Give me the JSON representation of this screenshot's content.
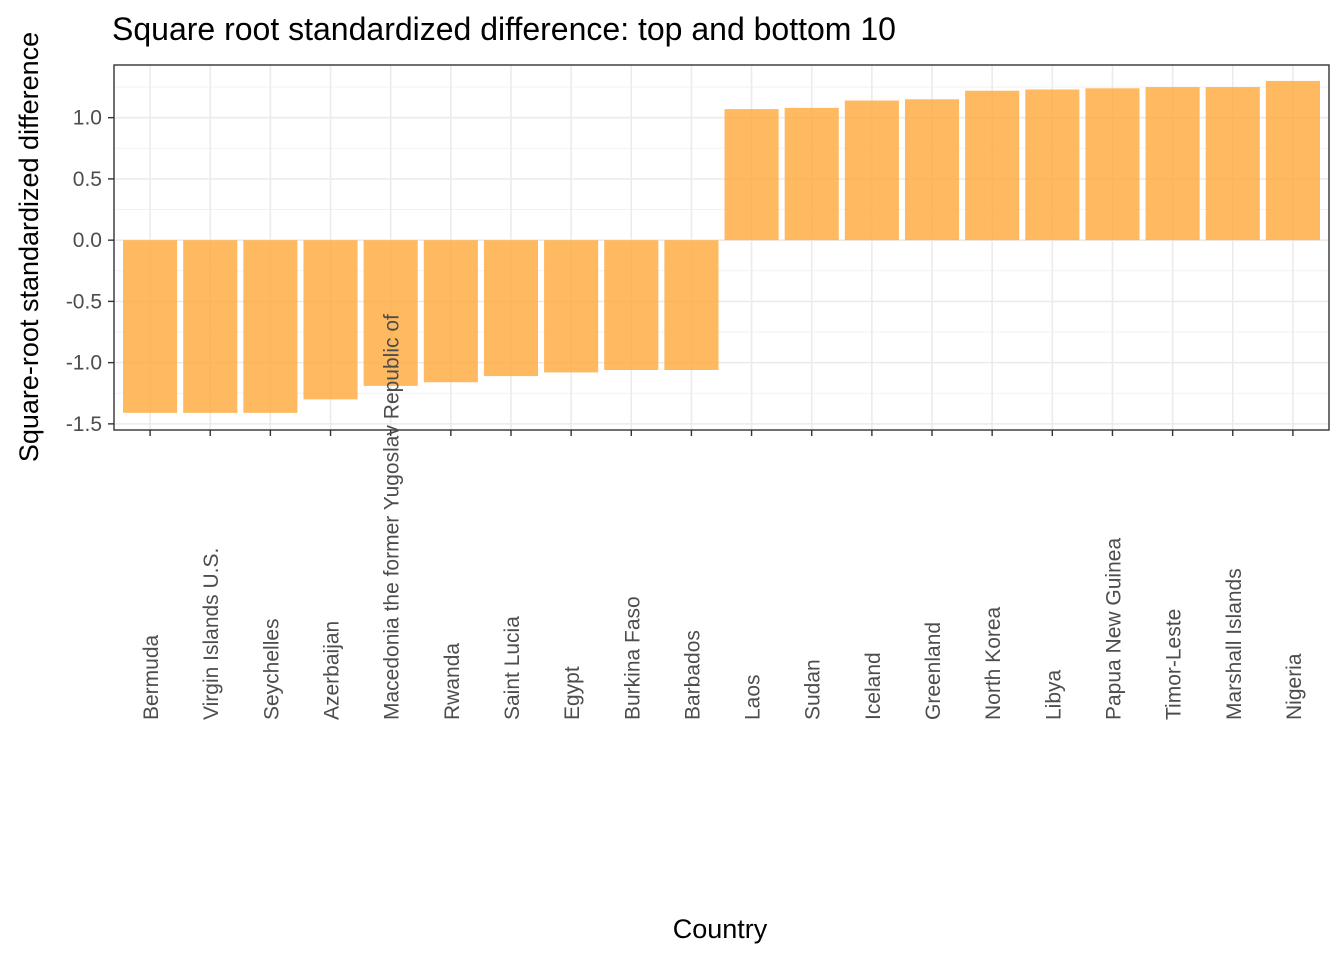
{
  "chart_data": {
    "type": "bar",
    "title": "Square root standardized difference: top and bottom 10",
    "xlabel": "Country",
    "ylabel": "Square-root standardized difference",
    "categories": [
      "Bermuda",
      "Virgin Islands U.S.",
      "Seychelles",
      "Azerbaijan",
      "Macedonia the former Yugoslav Republic of",
      "Rwanda",
      "Saint Lucia",
      "Egypt",
      "Burkina Faso",
      "Barbados",
      "Laos",
      "Sudan",
      "Iceland",
      "Greenland",
      "North Korea",
      "Libya",
      "Papua New Guinea",
      "Timor-Leste",
      "Marshall Islands",
      "Nigeria"
    ],
    "values": [
      -1.41,
      -1.41,
      -1.41,
      -1.3,
      -1.19,
      -1.16,
      -1.11,
      -1.08,
      -1.06,
      -1.06,
      1.07,
      1.08,
      1.14,
      1.15,
      1.22,
      1.23,
      1.24,
      1.25,
      1.25,
      1.3
    ],
    "ylim": [
      -1.55,
      1.43
    ],
    "yticks": [
      -1.5,
      -1.0,
      -0.5,
      0.0,
      0.5,
      1.0
    ],
    "ytick_labels": [
      "-1.5",
      "-1.0",
      "-0.5",
      "0.0",
      "0.5",
      "1.0"
    ],
    "bar_color": "#FFA93A",
    "bar_opacity": 0.8,
    "grid": true,
    "theme": "bw"
  }
}
